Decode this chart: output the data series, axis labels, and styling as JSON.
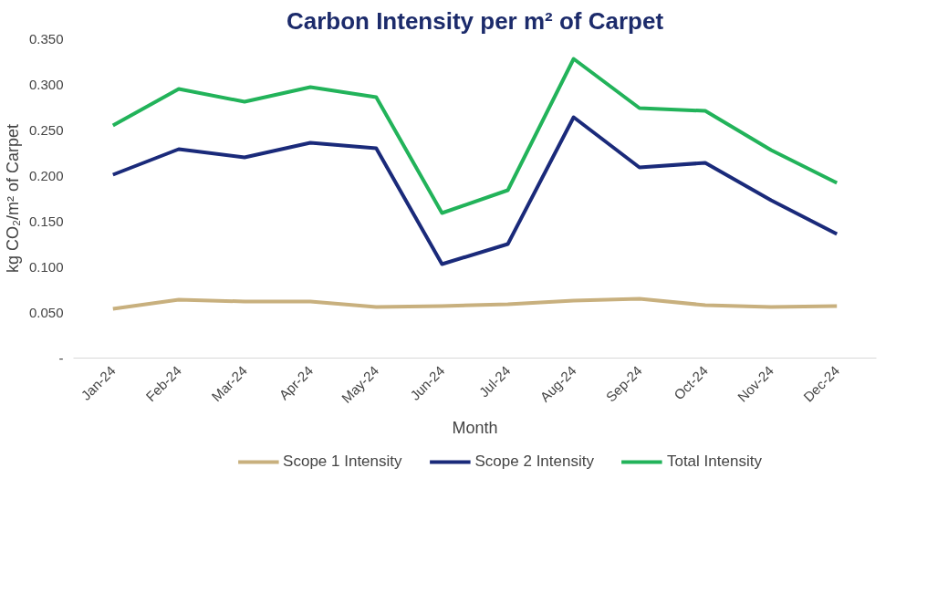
{
  "chart_data": {
    "type": "line",
    "title": "Carbon Intensity per m² of Carpet",
    "xlabel": "Month",
    "ylabel": "kg CO₂/m² of Carpet",
    "categories": [
      "Jan-24",
      "Feb-24",
      "Mar-24",
      "Apr-24",
      "May-24",
      "Jun-24",
      "Jul-24",
      "Aug-24",
      "Sep-24",
      "Oct-24",
      "Nov-24",
      "Dec-24"
    ],
    "series": [
      {
        "name": "Scope 1 Intensity",
        "color": "#c8b07e",
        "values": [
          0.054,
          0.064,
          0.062,
          0.062,
          0.056,
          0.057,
          0.059,
          0.063,
          0.065,
          0.058,
          0.056,
          0.057
        ]
      },
      {
        "name": "Scope 2 Intensity",
        "color": "#1a2a7a",
        "values": [
          0.201,
          0.229,
          0.22,
          0.236,
          0.23,
          0.103,
          0.125,
          0.264,
          0.209,
          0.214,
          0.173,
          0.136
        ]
      },
      {
        "name": "Total Intensity",
        "color": "#22b35a",
        "values": [
          0.255,
          0.295,
          0.281,
          0.297,
          0.286,
          0.159,
          0.184,
          0.328,
          0.274,
          0.271,
          0.228,
          0.192
        ]
      }
    ],
    "ylim": [
      0,
      0.35
    ],
    "yticks": [
      {
        "value": 0,
        "label": "-"
      },
      {
        "value": 0.05,
        "label": "0.050"
      },
      {
        "value": 0.1,
        "label": "0.100"
      },
      {
        "value": 0.15,
        "label": "0.150"
      },
      {
        "value": 0.2,
        "label": "0.200"
      },
      {
        "value": 0.25,
        "label": "0.250"
      },
      {
        "value": 0.3,
        "label": "0.300"
      },
      {
        "value": 0.35,
        "label": "0.350"
      }
    ],
    "grid": false,
    "legend": "bottom",
    "marker": "none",
    "line_style": "solid"
  }
}
